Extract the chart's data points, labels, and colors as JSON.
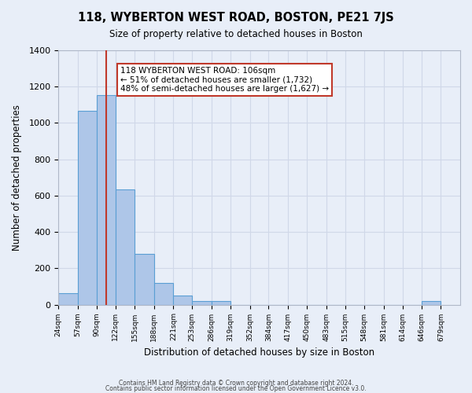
{
  "title": "118, WYBERTON WEST ROAD, BOSTON, PE21 7JS",
  "subtitle": "Size of property relative to detached houses in Boston",
  "xlabel": "Distribution of detached houses by size in Boston",
  "ylabel": "Number of detached properties",
  "footer_lines": [
    "Contains HM Land Registry data © Crown copyright and database right 2024.",
    "Contains public sector information licensed under the Open Government Licence v3.0."
  ],
  "bar_edges": [
    24,
    57,
    90,
    122,
    155,
    188,
    221,
    253,
    286,
    319,
    352,
    384,
    417,
    450,
    483,
    515,
    548,
    581,
    614,
    646,
    679
  ],
  "bar_heights": [
    65,
    1068,
    1155,
    635,
    280,
    120,
    48,
    20,
    20,
    0,
    0,
    0,
    0,
    0,
    0,
    0,
    0,
    0,
    0,
    20
  ],
  "bar_color": "#aec6e8",
  "bar_edge_color": "#5a9fd4",
  "property_line_x": 106,
  "property_line_color": "#c0392b",
  "annotation_text": "118 WYBERTON WEST ROAD: 106sqm\n← 51% of detached houses are smaller (1,732)\n48% of semi-detached houses are larger (1,627) →",
  "annotation_box_color": "#ffffff",
  "annotation_box_edge_color": "#c0392b",
  "ylim": [
    0,
    1400
  ],
  "xlim": [
    24,
    712
  ],
  "yticks": [
    0,
    200,
    400,
    600,
    800,
    1000,
    1200,
    1400
  ],
  "xtick_labels": [
    "24sqm",
    "57sqm",
    "90sqm",
    "122sqm",
    "155sqm",
    "188sqm",
    "221sqm",
    "253sqm",
    "286sqm",
    "319sqm",
    "352sqm",
    "384sqm",
    "417sqm",
    "450sqm",
    "483sqm",
    "515sqm",
    "548sqm",
    "581sqm",
    "614sqm",
    "646sqm",
    "679sqm"
  ],
  "xtick_positions": [
    24,
    57,
    90,
    122,
    155,
    188,
    221,
    253,
    286,
    319,
    352,
    384,
    417,
    450,
    483,
    515,
    548,
    581,
    614,
    646,
    679
  ],
  "grid_color": "#d0d8e8",
  "background_color": "#e8eef8"
}
